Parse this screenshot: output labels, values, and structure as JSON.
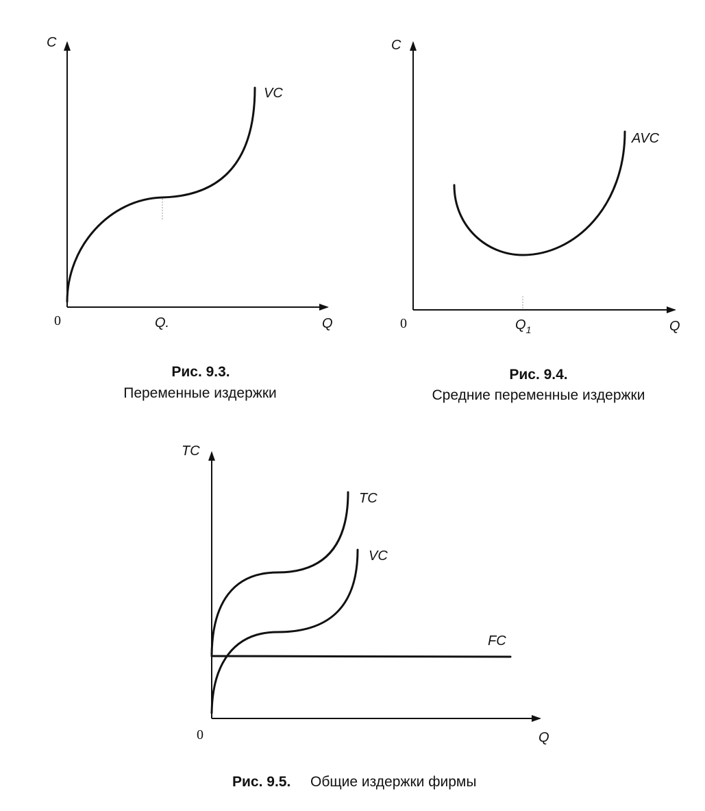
{
  "figures": [
    {
      "id": "fig_9_3",
      "y_axis_label": "C",
      "x_axis_label": "Q",
      "origin_label": "0",
      "x_tick_label": "Q.",
      "curves": [
        {
          "label": "VC"
        }
      ],
      "caption_number": "Рис. 9.3.",
      "caption_text": "Переменные издержки"
    },
    {
      "id": "fig_9_4",
      "y_axis_label": "C",
      "x_axis_label": "Q",
      "origin_label": "0",
      "x_tick_label": "Q",
      "x_tick_subscript": "1",
      "curves": [
        {
          "label": "AVC"
        }
      ],
      "caption_number": "Рис. 9.4.",
      "caption_text": "Средние переменные издержки"
    },
    {
      "id": "fig_9_5",
      "y_axis_label": "TC",
      "x_axis_label": "Q",
      "origin_label": "0",
      "curves": [
        {
          "label": "TC"
        },
        {
          "label": "VC"
        },
        {
          "label": "FC"
        }
      ],
      "caption_number": "Рис. 9.5.",
      "caption_text": "Общие издержки фирмы"
    }
  ]
}
